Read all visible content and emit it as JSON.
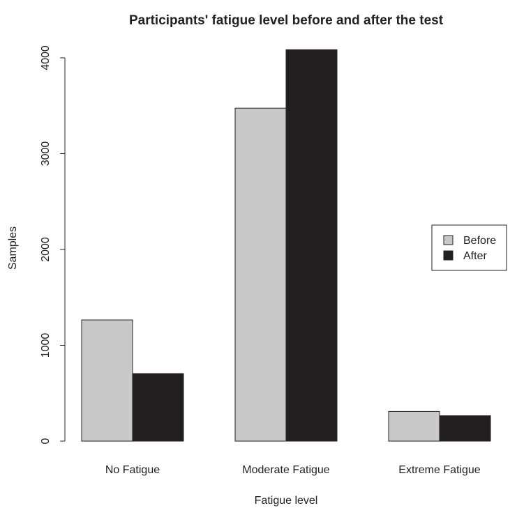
{
  "chart_data": {
    "type": "bar",
    "title": "Participants' fatigue level before and after the test",
    "xlabel": "Fatigue level",
    "ylabel": "Samples",
    "categories": [
      "No Fatigue",
      "Moderate Fatigue",
      "Extreme Fatigue"
    ],
    "series": [
      {
        "name": "Before",
        "color": "#c8c8c8",
        "values": [
          1265,
          3475,
          310
        ]
      },
      {
        "name": "After",
        "color": "#231f20",
        "values": [
          705,
          4085,
          265
        ]
      }
    ],
    "ylim": [
      0,
      4000
    ],
    "yticks": [
      "0",
      "1000",
      "2000",
      "3000",
      "4000"
    ],
    "grid": false,
    "legend_position": "right"
  }
}
